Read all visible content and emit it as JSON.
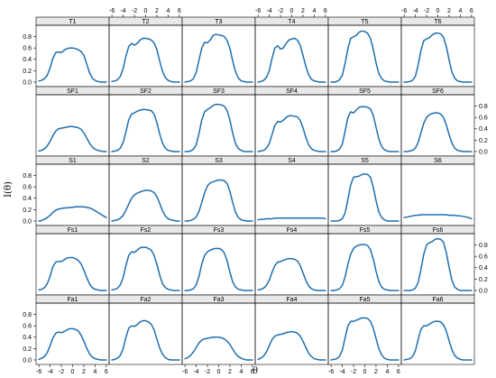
{
  "chart_data": {
    "type": "line",
    "layout": "trellis",
    "rows": 5,
    "cols": 6,
    "xlabel": "θ",
    "ylabel": "I(θ)",
    "xlim": [
      -6.5,
      6.5
    ],
    "ylim": [
      -0.08,
      1.0
    ],
    "xticks": [
      -6,
      -4,
      -2,
      0,
      2,
      4,
      6
    ],
    "yticks": [
      0.0,
      0.2,
      0.4,
      0.6,
      0.8
    ],
    "line_color": "#1f6fae",
    "strip_color": "#e8e8e8",
    "x": [
      -6,
      -5.5,
      -5,
      -4.5,
      -4,
      -3.5,
      -3,
      -2.5,
      -2,
      -1.5,
      -1,
      -0.5,
      0,
      0.5,
      1,
      1.5,
      2,
      2.5,
      3,
      3.5,
      4,
      4.5,
      5,
      5.5,
      6
    ],
    "panels": [
      {
        "label": "T1",
        "y": [
          0.02,
          0.03,
          0.06,
          0.12,
          0.25,
          0.42,
          0.52,
          0.53,
          0.52,
          0.56,
          0.59,
          0.6,
          0.6,
          0.59,
          0.57,
          0.54,
          0.47,
          0.32,
          0.17,
          0.07,
          0.03,
          0.01,
          0.0,
          0.0,
          0.0
        ]
      },
      {
        "label": "T2",
        "y": [
          0.01,
          0.02,
          0.04,
          0.1,
          0.24,
          0.46,
          0.63,
          0.68,
          0.65,
          0.68,
          0.74,
          0.77,
          0.77,
          0.76,
          0.74,
          0.69,
          0.57,
          0.37,
          0.19,
          0.08,
          0.03,
          0.01,
          0.0,
          0.0,
          0.0
        ]
      },
      {
        "label": "T3",
        "y": [
          0.0,
          0.01,
          0.02,
          0.06,
          0.17,
          0.39,
          0.6,
          0.7,
          0.69,
          0.74,
          0.82,
          0.84,
          0.83,
          0.82,
          0.8,
          0.73,
          0.59,
          0.37,
          0.18,
          0.07,
          0.02,
          0.01,
          0.0,
          0.0,
          0.0
        ]
      },
      {
        "label": "T4",
        "y": [
          0.0,
          0.01,
          0.03,
          0.08,
          0.2,
          0.42,
          0.6,
          0.64,
          0.58,
          0.6,
          0.68,
          0.74,
          0.76,
          0.77,
          0.74,
          0.65,
          0.47,
          0.28,
          0.13,
          0.05,
          0.02,
          0.01,
          0.0,
          0.0,
          0.0
        ]
      },
      {
        "label": "T5",
        "y": [
          0.0,
          0.0,
          0.01,
          0.04,
          0.12,
          0.33,
          0.59,
          0.77,
          0.8,
          0.82,
          0.88,
          0.9,
          0.89,
          0.86,
          0.77,
          0.58,
          0.34,
          0.15,
          0.06,
          0.02,
          0.01,
          0.0,
          0.0,
          0.0,
          0.0
        ]
      },
      {
        "label": "T6",
        "y": [
          0.0,
          0.0,
          0.01,
          0.03,
          0.1,
          0.3,
          0.56,
          0.73,
          0.76,
          0.78,
          0.83,
          0.86,
          0.86,
          0.85,
          0.79,
          0.63,
          0.39,
          0.18,
          0.07,
          0.02,
          0.01,
          0.0,
          0.0,
          0.0,
          0.0
        ]
      },
      {
        "label": "SF1",
        "y": [
          0.01,
          0.02,
          0.05,
          0.1,
          0.18,
          0.28,
          0.36,
          0.4,
          0.41,
          0.42,
          0.43,
          0.44,
          0.44,
          0.43,
          0.42,
          0.39,
          0.33,
          0.24,
          0.15,
          0.08,
          0.04,
          0.02,
          0.01,
          0.0,
          0.0
        ]
      },
      {
        "label": "SF2",
        "y": [
          0.0,
          0.01,
          0.02,
          0.06,
          0.16,
          0.35,
          0.56,
          0.66,
          0.68,
          0.71,
          0.73,
          0.74,
          0.74,
          0.73,
          0.72,
          0.66,
          0.51,
          0.31,
          0.15,
          0.06,
          0.02,
          0.01,
          0.0,
          0.0,
          0.0
        ]
      },
      {
        "label": "SF3",
        "y": [
          0.0,
          0.0,
          0.01,
          0.04,
          0.12,
          0.32,
          0.56,
          0.7,
          0.74,
          0.77,
          0.81,
          0.83,
          0.83,
          0.82,
          0.8,
          0.72,
          0.55,
          0.32,
          0.14,
          0.05,
          0.02,
          0.0,
          0.0,
          0.0,
          0.0
        ]
      },
      {
        "label": "SF4",
        "y": [
          0.0,
          0.01,
          0.02,
          0.06,
          0.14,
          0.3,
          0.46,
          0.53,
          0.52,
          0.55,
          0.6,
          0.63,
          0.63,
          0.62,
          0.61,
          0.55,
          0.42,
          0.25,
          0.12,
          0.05,
          0.02,
          0.01,
          0.0,
          0.0,
          0.0
        ]
      },
      {
        "label": "SF5",
        "y": [
          0.0,
          0.0,
          0.01,
          0.04,
          0.13,
          0.36,
          0.6,
          0.7,
          0.68,
          0.73,
          0.78,
          0.79,
          0.79,
          0.78,
          0.75,
          0.64,
          0.43,
          0.22,
          0.09,
          0.03,
          0.01,
          0.0,
          0.0,
          0.0,
          0.0
        ]
      },
      {
        "label": "SF6",
        "y": [
          0.0,
          0.0,
          0.01,
          0.02,
          0.06,
          0.16,
          0.33,
          0.5,
          0.6,
          0.65,
          0.67,
          0.68,
          0.68,
          0.66,
          0.6,
          0.47,
          0.3,
          0.15,
          0.06,
          0.02,
          0.01,
          0.0,
          0.0,
          0.0,
          0.0
        ]
      },
      {
        "label": "S1",
        "y": [
          0.0,
          0.01,
          0.03,
          0.06,
          0.1,
          0.15,
          0.19,
          0.21,
          0.22,
          0.23,
          0.23,
          0.24,
          0.24,
          0.25,
          0.25,
          0.25,
          0.25,
          0.24,
          0.23,
          0.21,
          0.18,
          0.15,
          0.12,
          0.09,
          0.06
        ]
      },
      {
        "label": "S2",
        "y": [
          0.0,
          0.01,
          0.02,
          0.05,
          0.1,
          0.19,
          0.3,
          0.4,
          0.46,
          0.49,
          0.51,
          0.53,
          0.54,
          0.54,
          0.53,
          0.5,
          0.43,
          0.31,
          0.18,
          0.09,
          0.04,
          0.02,
          0.01,
          0.0,
          0.0
        ]
      },
      {
        "label": "S3",
        "y": [
          0.0,
          0.0,
          0.01,
          0.03,
          0.07,
          0.17,
          0.33,
          0.5,
          0.62,
          0.67,
          0.69,
          0.71,
          0.72,
          0.72,
          0.71,
          0.66,
          0.52,
          0.32,
          0.15,
          0.06,
          0.02,
          0.01,
          0.0,
          0.0,
          0.0
        ]
      },
      {
        "label": "S4",
        "y": [
          0.02,
          0.03,
          0.03,
          0.04,
          0.04,
          0.04,
          0.05,
          0.05,
          0.05,
          0.05,
          0.05,
          0.05,
          0.05,
          0.05,
          0.05,
          0.05,
          0.05,
          0.05,
          0.05,
          0.05,
          0.05,
          0.05,
          0.05,
          0.05,
          0.04
        ]
      },
      {
        "label": "S5",
        "y": [
          0.0,
          0.0,
          0.0,
          0.01,
          0.04,
          0.14,
          0.38,
          0.64,
          0.77,
          0.78,
          0.79,
          0.82,
          0.83,
          0.82,
          0.77,
          0.6,
          0.36,
          0.16,
          0.06,
          0.02,
          0.0,
          0.0,
          0.0,
          0.0,
          0.0
        ]
      },
      {
        "label": "S6",
        "y": [
          0.06,
          0.07,
          0.08,
          0.09,
          0.1,
          0.1,
          0.11,
          0.11,
          0.11,
          0.11,
          0.11,
          0.11,
          0.11,
          0.11,
          0.11,
          0.11,
          0.1,
          0.1,
          0.1,
          0.09,
          0.09,
          0.08,
          0.07,
          0.06,
          0.04
        ]
      },
      {
        "label": "Fs1",
        "y": [
          0.01,
          0.02,
          0.05,
          0.12,
          0.25,
          0.42,
          0.5,
          0.51,
          0.51,
          0.54,
          0.57,
          0.58,
          0.58,
          0.56,
          0.53,
          0.47,
          0.36,
          0.23,
          0.12,
          0.05,
          0.02,
          0.01,
          0.0,
          0.0,
          0.0
        ]
      },
      {
        "label": "Fs2",
        "y": [
          0.01,
          0.02,
          0.04,
          0.1,
          0.23,
          0.44,
          0.62,
          0.68,
          0.67,
          0.71,
          0.75,
          0.76,
          0.76,
          0.74,
          0.71,
          0.62,
          0.46,
          0.27,
          0.12,
          0.05,
          0.02,
          0.01,
          0.0,
          0.0,
          0.0
        ]
      },
      {
        "label": "Fs3",
        "y": [
          0.0,
          0.0,
          0.01,
          0.03,
          0.1,
          0.25,
          0.47,
          0.62,
          0.68,
          0.71,
          0.73,
          0.74,
          0.74,
          0.72,
          0.66,
          0.52,
          0.32,
          0.15,
          0.06,
          0.02,
          0.01,
          0.0,
          0.0,
          0.0,
          0.0
        ]
      },
      {
        "label": "Fs4",
        "y": [
          0.01,
          0.02,
          0.04,
          0.09,
          0.18,
          0.32,
          0.44,
          0.5,
          0.51,
          0.53,
          0.55,
          0.56,
          0.56,
          0.55,
          0.52,
          0.44,
          0.31,
          0.18,
          0.08,
          0.03,
          0.01,
          0.0,
          0.0,
          0.0,
          0.0
        ]
      },
      {
        "label": "Fs5",
        "y": [
          0.0,
          0.0,
          0.01,
          0.03,
          0.09,
          0.24,
          0.46,
          0.64,
          0.74,
          0.78,
          0.8,
          0.81,
          0.81,
          0.79,
          0.72,
          0.56,
          0.34,
          0.16,
          0.06,
          0.02,
          0.01,
          0.0,
          0.0,
          0.0,
          0.0
        ]
      },
      {
        "label": "Fs6",
        "y": [
          0.0,
          0.0,
          0.0,
          0.01,
          0.04,
          0.14,
          0.37,
          0.64,
          0.8,
          0.84,
          0.86,
          0.9,
          0.91,
          0.9,
          0.85,
          0.67,
          0.41,
          0.18,
          0.06,
          0.02,
          0.0,
          0.0,
          0.0,
          0.0,
          0.0
        ]
      },
      {
        "label": "Fa1",
        "y": [
          0.01,
          0.03,
          0.06,
          0.13,
          0.25,
          0.39,
          0.47,
          0.49,
          0.48,
          0.5,
          0.53,
          0.55,
          0.55,
          0.54,
          0.51,
          0.44,
          0.33,
          0.21,
          0.11,
          0.05,
          0.02,
          0.01,
          0.0,
          0.0,
          0.0
        ]
      },
      {
        "label": "Fa2",
        "y": [
          0.0,
          0.01,
          0.03,
          0.08,
          0.2,
          0.4,
          0.56,
          0.6,
          0.59,
          0.62,
          0.67,
          0.69,
          0.69,
          0.67,
          0.63,
          0.53,
          0.37,
          0.21,
          0.1,
          0.04,
          0.01,
          0.0,
          0.0,
          0.0,
          0.0
        ]
      },
      {
        "label": "Fa3",
        "y": [
          0.02,
          0.04,
          0.08,
          0.14,
          0.22,
          0.3,
          0.35,
          0.37,
          0.38,
          0.39,
          0.4,
          0.4,
          0.4,
          0.39,
          0.37,
          0.33,
          0.27,
          0.19,
          0.11,
          0.06,
          0.03,
          0.01,
          0.0,
          0.0,
          0.0
        ]
      },
      {
        "label": "Fa4",
        "y": [
          0.01,
          0.03,
          0.07,
          0.14,
          0.25,
          0.36,
          0.42,
          0.44,
          0.45,
          0.46,
          0.48,
          0.49,
          0.5,
          0.49,
          0.47,
          0.42,
          0.33,
          0.22,
          0.12,
          0.06,
          0.02,
          0.01,
          0.0,
          0.0,
          0.0
        ]
      },
      {
        "label": "Fa5",
        "y": [
          0.0,
          0.01,
          0.02,
          0.06,
          0.17,
          0.39,
          0.6,
          0.68,
          0.68,
          0.7,
          0.72,
          0.74,
          0.74,
          0.73,
          0.68,
          0.56,
          0.38,
          0.2,
          0.09,
          0.03,
          0.01,
          0.0,
          0.0,
          0.0,
          0.0
        ]
      },
      {
        "label": "Fa6",
        "y": [
          0.0,
          0.01,
          0.02,
          0.06,
          0.16,
          0.36,
          0.54,
          0.6,
          0.6,
          0.63,
          0.66,
          0.68,
          0.68,
          0.67,
          0.62,
          0.51,
          0.34,
          0.18,
          0.08,
          0.03,
          0.01,
          0.0,
          0.0,
          0.0,
          0.0
        ]
      }
    ]
  }
}
